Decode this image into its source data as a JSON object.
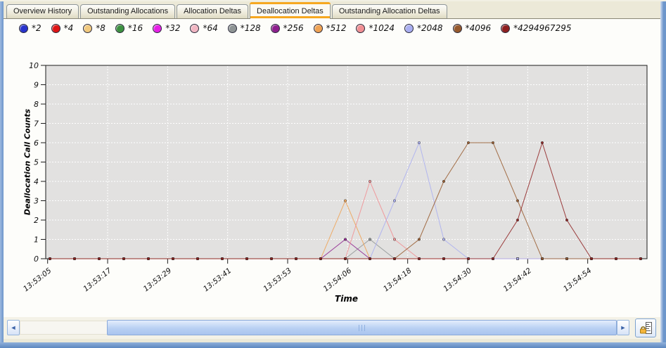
{
  "tabs": {
    "items": [
      {
        "label": "Overview History",
        "active": false
      },
      {
        "label": "Outstanding Allocations",
        "active": false
      },
      {
        "label": "Allocation Deltas",
        "active": false
      },
      {
        "label": "Deallocation Deltas",
        "active": true
      },
      {
        "label": "Outstanding Allocation Deltas",
        "active": false
      }
    ],
    "active_accent_color": "#f6a821"
  },
  "chart_data": {
    "type": "line",
    "title": "",
    "xlabel": "Time",
    "ylabel": "Deallocation Call Counts",
    "ylim": [
      0,
      10
    ],
    "y_ticks": [
      0,
      1,
      2,
      3,
      4,
      5,
      6,
      7,
      8,
      9,
      10
    ],
    "x_tick_labels": [
      "13:53:05",
      "13:53:17",
      "13:53:29",
      "13:53:41",
      "13:53:53",
      "13:54:06",
      "13:54:18",
      "13:54:30",
      "13:54:42",
      "13:54:54"
    ],
    "grid": true,
    "plot_background": "#e2e1e0",
    "grid_color": "#ffffff",
    "legend_position": "top",
    "sample_count": 25,
    "series": [
      {
        "name": "*2",
        "color": "#2833cc",
        "values": [
          0,
          0,
          0,
          0,
          0,
          0,
          0,
          0,
          0,
          0,
          0,
          0,
          0,
          0,
          0,
          0,
          0,
          0,
          0,
          0,
          0,
          0,
          0,
          0,
          0
        ]
      },
      {
        "name": "*4",
        "color": "#de1414",
        "values": [
          0,
          0,
          0,
          0,
          0,
          0,
          0,
          0,
          0,
          0,
          0,
          0,
          0,
          0,
          0,
          0,
          0,
          0,
          0,
          0,
          0,
          0,
          0,
          0,
          0
        ]
      },
      {
        "name": "*8",
        "color": "#f1c97e",
        "values": [
          0,
          0,
          0,
          0,
          0,
          0,
          0,
          0,
          0,
          0,
          0,
          0,
          0,
          0,
          0,
          0,
          0,
          0,
          0,
          0,
          0,
          0,
          0,
          0,
          0
        ]
      },
      {
        "name": "*16",
        "color": "#3c9140",
        "values": [
          0,
          0,
          0,
          0,
          0,
          0,
          0,
          0,
          0,
          0,
          0,
          0,
          0,
          0,
          0,
          0,
          0,
          0,
          0,
          0,
          0,
          0,
          0,
          0,
          0
        ]
      },
      {
        "name": "*32",
        "color": "#e620e6",
        "values": [
          0,
          0,
          0,
          0,
          0,
          0,
          0,
          0,
          0,
          0,
          0,
          0,
          0,
          0,
          0,
          0,
          0,
          0,
          0,
          0,
          0,
          0,
          0,
          0,
          0
        ]
      },
      {
        "name": "*64",
        "color": "#f1b6c2",
        "values": [
          0,
          0,
          0,
          0,
          0,
          0,
          0,
          0,
          0,
          0,
          0,
          0,
          0,
          0,
          0,
          0,
          0,
          0,
          0,
          0,
          0,
          0,
          0,
          0,
          0
        ]
      },
      {
        "name": "*128",
        "color": "#8e9494",
        "values": [
          0,
          0,
          0,
          0,
          0,
          0,
          0,
          0,
          0,
          0,
          0,
          0,
          0,
          1,
          0,
          0,
          0,
          0,
          0,
          0,
          0,
          0,
          0,
          0,
          0
        ]
      },
      {
        "name": "*256",
        "color": "#8d1f8d",
        "values": [
          0,
          0,
          0,
          0,
          0,
          0,
          0,
          0,
          0,
          0,
          0,
          0,
          1,
          0,
          0,
          0,
          0,
          0,
          0,
          0,
          0,
          0,
          0,
          0,
          0
        ]
      },
      {
        "name": "*512",
        "color": "#efa253",
        "values": [
          0,
          0,
          0,
          0,
          0,
          0,
          0,
          0,
          0,
          0,
          0,
          0,
          3,
          0,
          0,
          0,
          0,
          0,
          0,
          0,
          0,
          0,
          0,
          0,
          0
        ]
      },
      {
        "name": "*1024",
        "color": "#f18f93",
        "values": [
          0,
          0,
          0,
          0,
          0,
          0,
          0,
          0,
          0,
          0,
          0,
          0,
          0,
          4,
          1,
          0,
          0,
          0,
          0,
          0,
          0,
          0,
          0,
          0,
          0
        ]
      },
      {
        "name": "*2048",
        "color": "#a9aef1",
        "values": [
          0,
          0,
          0,
          0,
          0,
          0,
          0,
          0,
          0,
          0,
          0,
          0,
          0,
          0,
          3,
          6,
          1,
          0,
          0,
          0,
          0,
          0,
          0,
          0,
          0
        ]
      },
      {
        "name": "*4096",
        "color": "#96592c",
        "values": [
          0,
          0,
          0,
          0,
          0,
          0,
          0,
          0,
          0,
          0,
          0,
          0,
          0,
          0,
          0,
          1,
          4,
          6,
          6,
          3,
          0,
          0,
          0,
          0,
          0
        ]
      },
      {
        "name": "*4294967295",
        "color": "#8e1f1f",
        "values": [
          0,
          0,
          0,
          0,
          0,
          0,
          0,
          0,
          0,
          0,
          0,
          0,
          0,
          0,
          0,
          0,
          0,
          0,
          0,
          2,
          6,
          2,
          0,
          0,
          0
        ]
      }
    ]
  },
  "scrollbar": {
    "left_arrow": "◄",
    "right_arrow": "►"
  },
  "icons": {
    "lock_scale": "lock-ruler-icon"
  }
}
